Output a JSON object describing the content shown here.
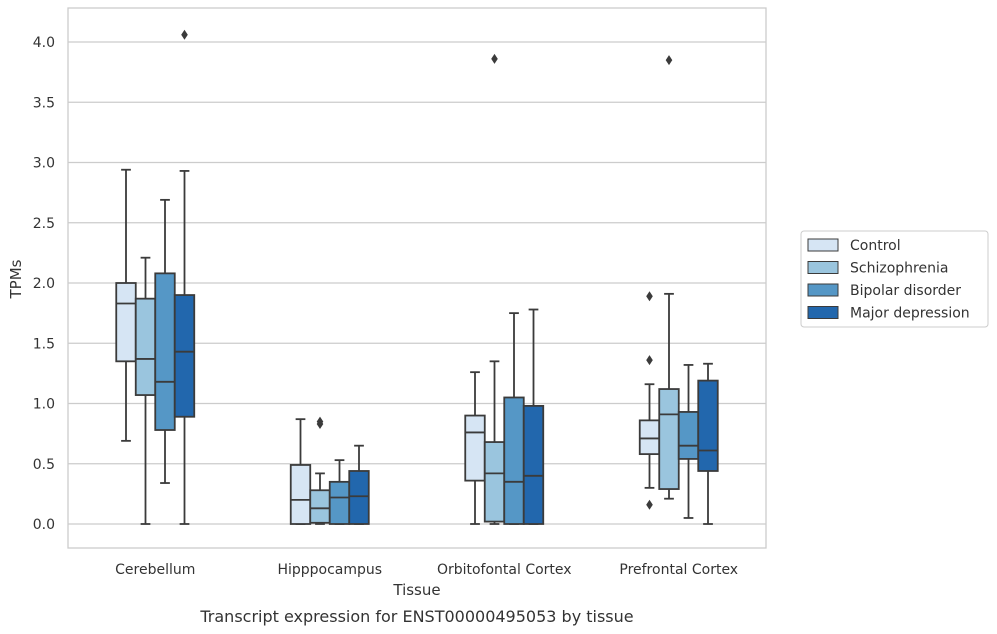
{
  "chart_data": {
    "type": "box",
    "caption": "Transcript expression for ENST00000495053 by tissue",
    "xlabel": "Tissue",
    "ylabel": "TPMs",
    "ylim": [
      -0.2,
      4.27
    ],
    "yticks": [
      "0.0",
      "0.5",
      "1.0",
      "1.5",
      "2.0",
      "2.5",
      "3.0",
      "3.5",
      "4.0"
    ],
    "grid": "horizontal",
    "legend_position": "right",
    "categories": [
      "Cerebellum",
      "Hipppocampus",
      "Orbitofontal Cortex",
      "Prefrontal Cortex"
    ],
    "series": [
      {
        "name": "Control",
        "color": "#d6e5f4",
        "boxes": [
          {
            "whislo": 0.69,
            "q1": 1.35,
            "med": 1.83,
            "q3": 2.0,
            "whishi": 2.94,
            "fliers": []
          },
          {
            "whislo": 0.0,
            "q1": 0.0,
            "med": 0.2,
            "q3": 0.49,
            "whishi": 0.87,
            "fliers": []
          },
          {
            "whislo": 0.0,
            "q1": 0.36,
            "med": 0.76,
            "q3": 0.9,
            "whishi": 1.26,
            "fliers": []
          },
          {
            "whislo": 0.3,
            "q1": 0.58,
            "med": 0.71,
            "q3": 0.86,
            "whishi": 1.16,
            "fliers": [
              1.36,
              1.89,
              0.16
            ]
          }
        ]
      },
      {
        "name": "Schizophrenia",
        "color": "#9ac5de",
        "boxes": [
          {
            "whislo": 0.0,
            "q1": 1.07,
            "med": 1.37,
            "q3": 1.87,
            "whishi": 2.21,
            "fliers": []
          },
          {
            "whislo": 0.0,
            "q1": 0.01,
            "med": 0.13,
            "q3": 0.28,
            "whishi": 0.42,
            "fliers": [
              0.83,
              0.85
            ]
          },
          {
            "whislo": 0.0,
            "q1": 0.02,
            "med": 0.42,
            "q3": 0.68,
            "whishi": 1.35,
            "fliers": [
              3.86
            ]
          },
          {
            "whislo": 0.21,
            "q1": 0.29,
            "med": 0.91,
            "q3": 1.12,
            "whishi": 1.91,
            "fliers": [
              3.85
            ]
          }
        ]
      },
      {
        "name": "Bipolar disorder",
        "color": "#5597c6",
        "boxes": [
          {
            "whislo": 0.34,
            "q1": 0.78,
            "med": 1.18,
            "q3": 2.08,
            "whishi": 2.69,
            "fliers": []
          },
          {
            "whislo": 0.0,
            "q1": 0.0,
            "med": 0.22,
            "q3": 0.35,
            "whishi": 0.53,
            "fliers": []
          },
          {
            "whislo": 0.0,
            "q1": 0.0,
            "med": 0.35,
            "q3": 1.05,
            "whishi": 1.75,
            "fliers": []
          },
          {
            "whislo": 0.05,
            "q1": 0.54,
            "med": 0.65,
            "q3": 0.93,
            "whishi": 1.32,
            "fliers": []
          }
        ]
      },
      {
        "name": "Major depression",
        "color": "#2267ad",
        "boxes": [
          {
            "whislo": 0.0,
            "q1": 0.89,
            "med": 1.43,
            "q3": 1.9,
            "whishi": 2.93,
            "fliers": [
              4.06
            ]
          },
          {
            "whislo": 0.0,
            "q1": 0.0,
            "med": 0.23,
            "q3": 0.44,
            "whishi": 0.65,
            "fliers": []
          },
          {
            "whislo": 0.0,
            "q1": 0.0,
            "med": 0.4,
            "q3": 0.98,
            "whishi": 1.78,
            "fliers": []
          },
          {
            "whislo": 0.0,
            "q1": 0.44,
            "med": 0.61,
            "q3": 1.19,
            "whishi": 1.33,
            "fliers": []
          }
        ]
      }
    ]
  }
}
